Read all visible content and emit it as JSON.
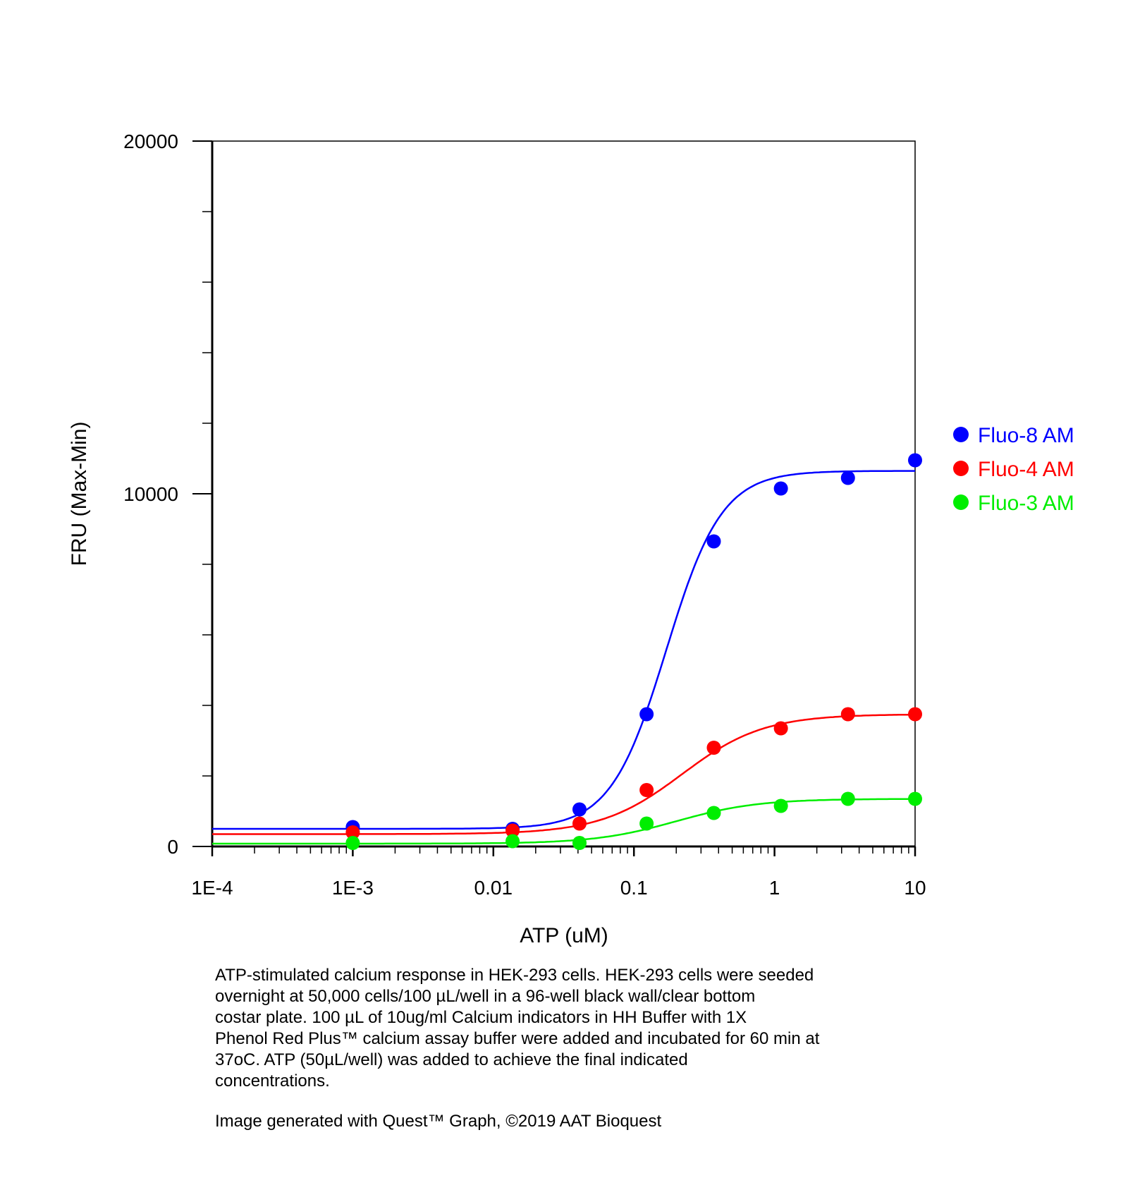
{
  "chart_data": {
    "type": "scatter",
    "xscale": "log",
    "xlabel": "ATP (uM)",
    "ylabel": "FRU (Max-Min)",
    "xlim": [
      0.0001,
      10
    ],
    "ylim": [
      0,
      20000
    ],
    "xticks": [
      {
        "value": 0.0001,
        "label": "1E-4"
      },
      {
        "value": 0.001,
        "label": "1E-3"
      },
      {
        "value": 0.01,
        "label": "0.01"
      },
      {
        "value": 0.1,
        "label": "0.1"
      },
      {
        "value": 1,
        "label": "1"
      },
      {
        "value": 10,
        "label": "10"
      }
    ],
    "yticks": [
      {
        "value": 0,
        "label": "0"
      },
      {
        "value": 10000,
        "label": "10000"
      },
      {
        "value": 20000,
        "label": "20000"
      }
    ],
    "legend_position": "right",
    "series": [
      {
        "name": "Fluo-8 AM",
        "color": "#0000ff",
        "x": [
          0.001,
          0.0137,
          0.041,
          0.123,
          0.37,
          1.11,
          3.33,
          10
        ],
        "y": [
          550,
          500,
          1050,
          3750,
          8650,
          10150,
          10450,
          10950
        ],
        "fit": {
          "bottom": 500,
          "top": 10650,
          "ec50": 0.17,
          "hill": 2.2
        }
      },
      {
        "name": "Fluo-4 AM",
        "color": "#ff0000",
        "x": [
          0.001,
          0.0137,
          0.041,
          0.123,
          0.37,
          1.11,
          3.33,
          10
        ],
        "y": [
          400,
          450,
          650,
          1600,
          2800,
          3350,
          3750,
          3750
        ],
        "fit": {
          "bottom": 350,
          "top": 3750,
          "ec50": 0.22,
          "hill": 1.5
        }
      },
      {
        "name": "Fluo-3 AM",
        "color": "#00ee00",
        "x": [
          0.001,
          0.0137,
          0.041,
          0.123,
          0.37,
          1.11,
          3.33,
          10
        ],
        "y": [
          100,
          150,
          100,
          650,
          950,
          1150,
          1350,
          1350
        ],
        "fit": {
          "bottom": 80,
          "top": 1350,
          "ec50": 0.2,
          "hill": 1.5
        }
      }
    ]
  },
  "caption": {
    "lines": [
      "ATP-stimulated calcium response in HEK-293 cells.   HEK-293 cells were seeded",
      "overnight at 50,000 cells/100 µL/well in a 96-well black wall/clear bottom",
      "costar plate. 100 µL of 10ug/ml Calcium indicators in HH Buffer with  1X",
      "Phenol Red Plus™ calcium assay buffer were added and incubated for 60 min at",
      "37oC. ATP (50µL/well) was added to achieve  the final indicated",
      "concentrations."
    ],
    "credit": "Image generated with Quest™ Graph, ©2019 AAT Bioquest"
  }
}
